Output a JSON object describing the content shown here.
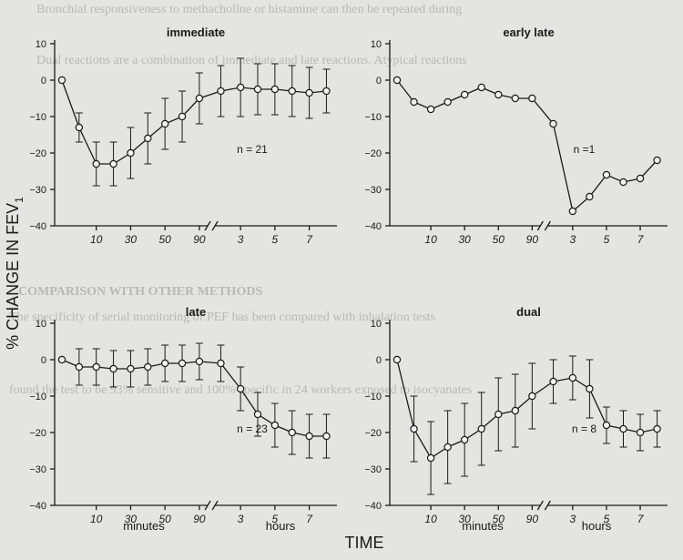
{
  "figure": {
    "y_axis_label": "% CHANGE IN FEV",
    "y_axis_label_sub": "1",
    "x_axis_label": "TIME",
    "minutes_label": "minutes",
    "hours_label": "hours",
    "background_text": [
      "Bronchial responsiveness to methacholine or histamine can then be repeated during",
      "Dual reactions are a combination of immediate and late reactions. Atypical reactions",
      "COMPARISON WITH OTHER METHODS",
      "The specificity of serial monitoring of PEF has been compared with inhalation tests",
      "found the test to be 93% sensitive and 100% specific in 24 workers exposed to isocyanates"
    ]
  },
  "chart_data": [
    {
      "type": "line",
      "title": "immediate",
      "annotation": "n = 21",
      "error_bars": true,
      "x_tick_labels": [
        "10",
        "30",
        "50",
        "90",
        "3",
        "5",
        "7"
      ],
      "ylim": [
        -40,
        10
      ],
      "y_ticks": [
        10,
        0,
        -10,
        -20,
        -30,
        -40
      ],
      "y_tick_labels": [
        "10",
        "0",
        "−10",
        "−20",
        "−30",
        "−40"
      ],
      "grid": false,
      "series": [
        {
          "x": [
            "0 min",
            "5 min",
            "10 min",
            "20 min",
            "30 min",
            "40 min",
            "50 min",
            "60 min",
            "90 min",
            "2 h",
            "3 h",
            "4 h",
            "5 h",
            "6 h",
            "7 h",
            "8 h"
          ],
          "values": [
            0,
            -13,
            -23,
            -23,
            -20,
            -16,
            -12,
            -10,
            -5,
            -3,
            -2,
            -2.5,
            -2.5,
            -3,
            -3.5,
            -3
          ],
          "error": [
            0,
            4,
            6,
            6,
            7,
            7,
            7,
            7,
            7,
            7,
            8,
            7,
            7,
            7,
            7,
            6
          ]
        }
      ]
    },
    {
      "type": "line",
      "title": "early late",
      "annotation": "n =1",
      "error_bars": false,
      "x_tick_labels": [
        "10",
        "30",
        "50",
        "90",
        "3",
        "5",
        "7"
      ],
      "ylim": [
        -40,
        10
      ],
      "y_ticks": [
        10,
        0,
        -10,
        -20,
        -30,
        -40
      ],
      "y_tick_labels": [
        "10",
        "0",
        "−10",
        "−20",
        "−30",
        "−40"
      ],
      "grid": false,
      "series": [
        {
          "x": [
            "0 min",
            "5 min",
            "10 min",
            "20 min",
            "30 min",
            "40 min",
            "50 min",
            "60 min",
            "90 min",
            "2 h",
            "3 h",
            "4 h",
            "5 h",
            "6 h",
            "7 h",
            "8 h"
          ],
          "values": [
            0,
            -6,
            -8,
            -6,
            -4,
            -2,
            -4,
            -5,
            -5,
            -12,
            -36,
            -32,
            -26,
            -28,
            -27,
            -22
          ]
        }
      ]
    },
    {
      "type": "line",
      "title": "late",
      "annotation": "n = 23",
      "error_bars": true,
      "x_tick_labels": [
        "10",
        "30",
        "50",
        "90",
        "3",
        "5",
        "7"
      ],
      "ylim": [
        -40,
        10
      ],
      "y_ticks": [
        10,
        0,
        -10,
        -20,
        -30,
        -40
      ],
      "y_tick_labels": [
        "10",
        "0",
        "−10",
        "−20",
        "−30",
        "−40"
      ],
      "grid": false,
      "series": [
        {
          "x": [
            "0 min",
            "5 min",
            "10 min",
            "20 min",
            "30 min",
            "40 min",
            "50 min",
            "60 min",
            "90 min",
            "2 h",
            "3 h",
            "4 h",
            "5 h",
            "6 h",
            "7 h",
            "8 h"
          ],
          "values": [
            0,
            -2,
            -2,
            -2.5,
            -2.5,
            -2,
            -1,
            -1,
            -0.5,
            -1,
            -8,
            -15,
            -18,
            -20,
            -21,
            -21
          ],
          "error": [
            0,
            5,
            5,
            5,
            5,
            5,
            5,
            5,
            5,
            5,
            6,
            6,
            6,
            6,
            6,
            6
          ]
        }
      ]
    },
    {
      "type": "line",
      "title": "dual",
      "annotation": "n = 8",
      "error_bars": true,
      "x_tick_labels": [
        "10",
        "30",
        "50",
        "90",
        "3",
        "5",
        "7"
      ],
      "ylim": [
        -40,
        10
      ],
      "y_ticks": [
        10,
        0,
        -10,
        -20,
        -30,
        -40
      ],
      "y_tick_labels": [
        "10",
        "0",
        "−10",
        "−20",
        "−30",
        "−40"
      ],
      "grid": false,
      "series": [
        {
          "x": [
            "0 min",
            "5 min",
            "10 min",
            "20 min",
            "30 min",
            "40 min",
            "50 min",
            "60 min",
            "90 min",
            "2 h",
            "3 h",
            "4 h",
            "5 h",
            "6 h",
            "7 h",
            "8 h"
          ],
          "values": [
            0,
            -19,
            -27,
            -24,
            -22,
            -19,
            -15,
            -14,
            -10,
            -6,
            -5,
            -8,
            -18,
            -19,
            -20,
            -19
          ],
          "error": [
            0,
            9,
            10,
            10,
            10,
            10,
            10,
            10,
            9,
            6,
            6,
            8,
            5,
            5,
            5,
            5
          ]
        }
      ]
    }
  ]
}
